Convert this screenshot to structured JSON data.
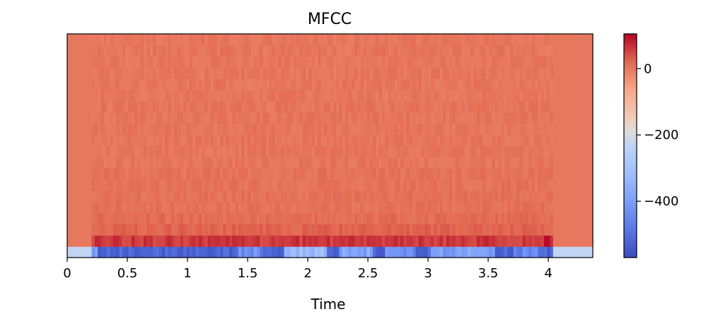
{
  "chart_data": {
    "type": "heatmap",
    "title": "MFCC",
    "xlabel": "Time",
    "ylabel": "",
    "xlim": [
      0,
      4.37
    ],
    "x_ticks": [
      {
        "value": 0,
        "label": "0"
      },
      {
        "value": 0.5,
        "label": "0.5"
      },
      {
        "value": 1,
        "label": "1"
      },
      {
        "value": 1.5,
        "label": "1.5"
      },
      {
        "value": 2,
        "label": "2"
      },
      {
        "value": 2.5,
        "label": "2.5"
      },
      {
        "value": 3,
        "label": "3"
      },
      {
        "value": 3.5,
        "label": "3.5"
      },
      {
        "value": 4,
        "label": "4"
      }
    ],
    "n_coefficients": 20,
    "colormap": "coolwarm",
    "color_range": [
      -570,
      105
    ],
    "colorbar_ticks": [
      {
        "value": 0,
        "label": "0"
      },
      {
        "value": -200,
        "label": "−200"
      },
      {
        "value": -400,
        "label": "−400"
      }
    ],
    "silence_segments": [
      [
        0,
        0.21
      ],
      [
        4.04,
        4.37
      ]
    ],
    "silence_levels": {
      "coef_0": -230,
      "other": 0
    },
    "row_levels": [
      -520,
      60,
      25,
      15,
      10,
      10,
      8,
      8,
      5,
      5,
      5,
      5,
      5,
      5,
      3,
      3,
      3,
      3,
      3,
      3
    ],
    "coef0_bright_segments": [
      [
        0.21,
        0.26,
        -430
      ],
      [
        1.42,
        1.62,
        -440
      ],
      [
        1.8,
        2.15,
        -320
      ],
      [
        2.25,
        2.55,
        -380
      ],
      [
        2.65,
        2.9,
        -420
      ],
      [
        3.02,
        3.55,
        -400
      ],
      [
        3.7,
        3.9,
        -450
      ]
    ],
    "coef1_peak": {
      "t": 4.0,
      "value": 100
    },
    "grid": false,
    "legend": "none"
  }
}
